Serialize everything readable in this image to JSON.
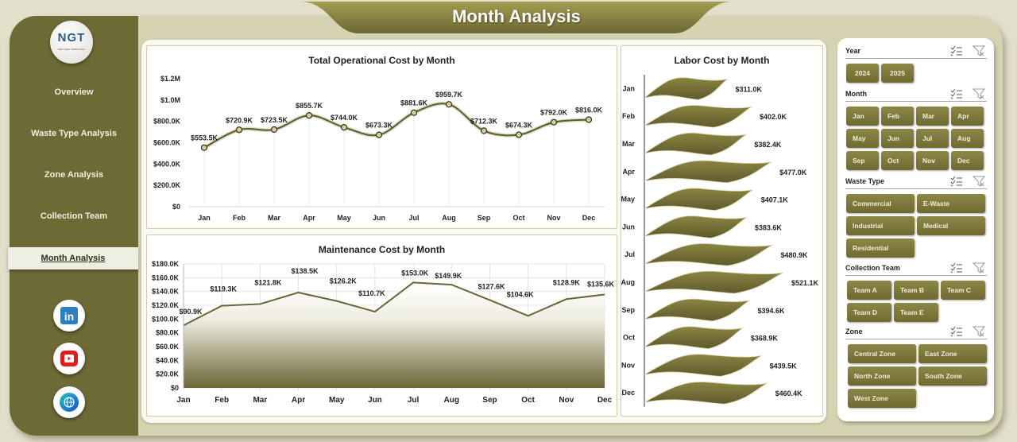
{
  "header": {
    "title": "Month Analysis"
  },
  "logo": {
    "text": "NGT",
    "subtext": "NEXT GEN TEMPLATES"
  },
  "sidebar": {
    "items": [
      {
        "label": "Overview"
      },
      {
        "label": "Waste Type Analysis"
      },
      {
        "label": "Zone Analysis"
      },
      {
        "label": "Collection Team"
      },
      {
        "label": "Month Analysis",
        "active": true
      }
    ],
    "social": [
      "linkedin-icon",
      "youtube-icon",
      "globe-icon"
    ]
  },
  "charts": {
    "operational": {
      "title": "Total Operational Cost by Month"
    },
    "maintenance": {
      "title": "Maintenance Cost by Month"
    },
    "labor": {
      "title": "Labor Cost by Month"
    }
  },
  "slicers": {
    "year": {
      "label": "Year",
      "options": [
        "2024",
        "2025"
      ]
    },
    "month": {
      "label": "Month",
      "options": [
        "Jan",
        "Feb",
        "Mar",
        "Apr",
        "May",
        "Jun",
        "Jul",
        "Aug",
        "Sep",
        "Oct",
        "Nov",
        "Dec"
      ]
    },
    "waste_type": {
      "label": "Waste Type",
      "options": [
        "Commercial",
        "E-Waste",
        "Industrial",
        "Medical",
        "Residential"
      ]
    },
    "collection_team": {
      "label": "Collection Team",
      "options": [
        "Team A",
        "Team B",
        "Team C",
        "Team D",
        "Team E"
      ]
    },
    "zone": {
      "label": "Zone",
      "options": [
        "Central Zone",
        "East Zone",
        "North Zone",
        "South Zone",
        "West Zone"
      ]
    }
  },
  "colors": {
    "accent": "#6d6a35",
    "frame": "#d6d3b2",
    "button": "#7d7839"
  },
  "chart_data": [
    {
      "type": "line",
      "title": "Total Operational Cost by Month",
      "categories": [
        "Jan",
        "Feb",
        "Mar",
        "Apr",
        "May",
        "Jun",
        "Jul",
        "Aug",
        "Sep",
        "Oct",
        "Nov",
        "Dec"
      ],
      "values": [
        553.5,
        720.9,
        723.5,
        855.7,
        744.0,
        673.3,
        881.6,
        959.7,
        712.3,
        674.3,
        792.0,
        816.0
      ],
      "labels": [
        "$553.5K",
        "$720.9K",
        "$723.5K",
        "$855.7K",
        "$744.0K",
        "$673.3K",
        "$881.6K",
        "$959.7K",
        "$712.3K",
        "$674.3K",
        "$792.0K",
        "$816.0K"
      ],
      "unit": "thousands USD",
      "yticks": [
        "$0",
        "$200.0K",
        "$400.0K",
        "$600.0K",
        "$800.0K",
        "$1.0M",
        "$1.2M"
      ],
      "ylim": [
        0,
        1200
      ],
      "smooth": true
    },
    {
      "type": "area",
      "title": "Maintenance Cost by Month",
      "categories": [
        "Jan",
        "Feb",
        "Mar",
        "Apr",
        "May",
        "Jun",
        "Jul",
        "Aug",
        "Sep",
        "Oct",
        "Nov",
        "Dec"
      ],
      "values": [
        90.9,
        119.3,
        121.8,
        138.5,
        126.2,
        110.7,
        153.0,
        149.9,
        127.6,
        104.6,
        128.9,
        135.6
      ],
      "labels": [
        "$90.9K",
        "$119.3K",
        "$121.8K",
        "$138.5K",
        "$126.2K",
        "$110.7K",
        "$153.0K",
        "$149.9K",
        "$127.6K",
        "$104.6K",
        "$128.9K",
        "$135.6K"
      ],
      "unit": "thousands USD",
      "yticks": [
        "$0",
        "$20.0K",
        "$40.0K",
        "$60.0K",
        "$80.0K",
        "$100.0K",
        "$120.0K",
        "$140.0K",
        "$160.0K",
        "$180.0K"
      ],
      "ylim": [
        0,
        180
      ],
      "grid": true
    },
    {
      "type": "bar",
      "orientation": "horizontal",
      "title": "Labor Cost by Month",
      "categories": [
        "Jan",
        "Feb",
        "Mar",
        "Apr",
        "May",
        "Jun",
        "Jul",
        "Aug",
        "Sep",
        "Oct",
        "Nov",
        "Dec"
      ],
      "values": [
        311.0,
        402.0,
        382.4,
        477.0,
        407.1,
        383.6,
        480.9,
        521.1,
        394.6,
        368.9,
        439.5,
        460.4
      ],
      "labels": [
        "$311.0K",
        "$402.0K",
        "$382.4K",
        "$477.0K",
        "$407.1K",
        "$383.6K",
        "$480.9K",
        "$521.1K",
        "$394.6K",
        "$368.9K",
        "$439.5K",
        "$460.4K"
      ],
      "unit": "thousands USD"
    }
  ]
}
